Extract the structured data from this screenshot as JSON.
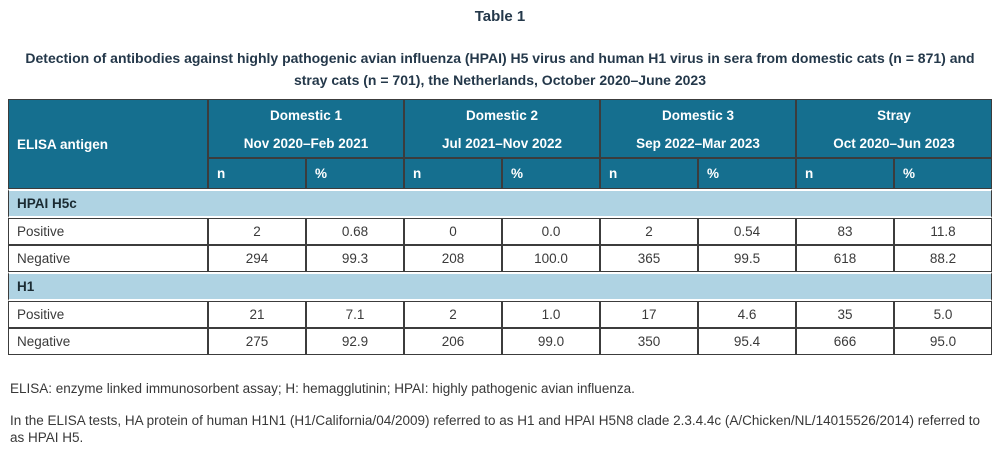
{
  "page": {
    "title": "Table 1",
    "caption": "Detection of antibodies against highly pathogenic avian influenza (HPAI) H5 virus and human H1 virus in sera from domestic cats (n = 871) and stray cats (n = 701), the Netherlands, October 2020–June 2023",
    "footnotes": [
      "ELISA: enzyme linked immunosorbent assay; H: hemagglutinin; HPAI: highly pathogenic avian influenza.",
      "In the ELISA tests, HA protein of human H1N1 (H1/California/04/2009) referred to as H1 and HPAI H5N8 clade 2.3.4.4c (A/Chicken/NL/14015526/2014) referred to as HPAI H5."
    ]
  },
  "colors": {
    "header_teal": "#156f8f",
    "section_blue": "#afd3e3",
    "border_dark": "#3c3c3c",
    "caption_navy": "#24384a"
  },
  "table": {
    "corner_header": "ELISA antigen",
    "groups": [
      {
        "label": "Domestic 1",
        "period": "Nov 2020–Feb 2021"
      },
      {
        "label": "Domestic 2",
        "period": "Jul 2021–Nov 2022"
      },
      {
        "label": "Domestic 3",
        "period": "Sep 2022–Mar 2023"
      },
      {
        "label": "Stray",
        "period": "Oct 2020–Jun 2023"
      }
    ],
    "subheaders": [
      "n",
      "%"
    ],
    "sections": [
      {
        "label": "HPAI H5c",
        "rows": [
          {
            "label": "Positive",
            "values": [
              "2",
              "0.68",
              "0",
              "0.0",
              "2",
              "0.54",
              "83",
              "11.8"
            ]
          },
          {
            "label": "Negative",
            "values": [
              "294",
              "99.3",
              "208",
              "100.0",
              "365",
              "99.5",
              "618",
              "88.2"
            ]
          }
        ]
      },
      {
        "label": "H1",
        "rows": [
          {
            "label": "Positive",
            "values": [
              "21",
              "7.1",
              "2",
              "1.0",
              "17",
              "4.6",
              "35",
              "5.0"
            ]
          },
          {
            "label": "Negative",
            "values": [
              "275",
              "92.9",
              "206",
              "99.0",
              "350",
              "95.4",
              "666",
              "95.0"
            ]
          }
        ]
      }
    ]
  },
  "chart_data": {
    "type": "table",
    "title": "Table 1. Detection of antibodies against HPAI H5 virus and human H1 virus in sera from domestic cats (n = 871) and stray cats (n = 701), the Netherlands, October 2020–June 2023",
    "column_groups": [
      "Domestic 1 (Nov 2020–Feb 2021)",
      "Domestic 2 (Jul 2021–Nov 2022)",
      "Domestic 3 (Sep 2022–Mar 2023)",
      "Stray (Oct 2020–Jun 2023)"
    ],
    "columns": [
      "ELISA antigen",
      "n",
      "%",
      "n",
      "%",
      "n",
      "%",
      "n",
      "%"
    ],
    "rows": [
      [
        "HPAI H5c Positive",
        2,
        0.68,
        0,
        0.0,
        2,
        0.54,
        83,
        11.8
      ],
      [
        "HPAI H5c Negative",
        294,
        99.3,
        208,
        100.0,
        365,
        99.5,
        618,
        88.2
      ],
      [
        "H1 Positive",
        21,
        7.1,
        2,
        1.0,
        17,
        4.6,
        35,
        5.0
      ],
      [
        "H1 Negative",
        275,
        92.9,
        206,
        99.0,
        350,
        95.4,
        666,
        95.0
      ]
    ]
  }
}
